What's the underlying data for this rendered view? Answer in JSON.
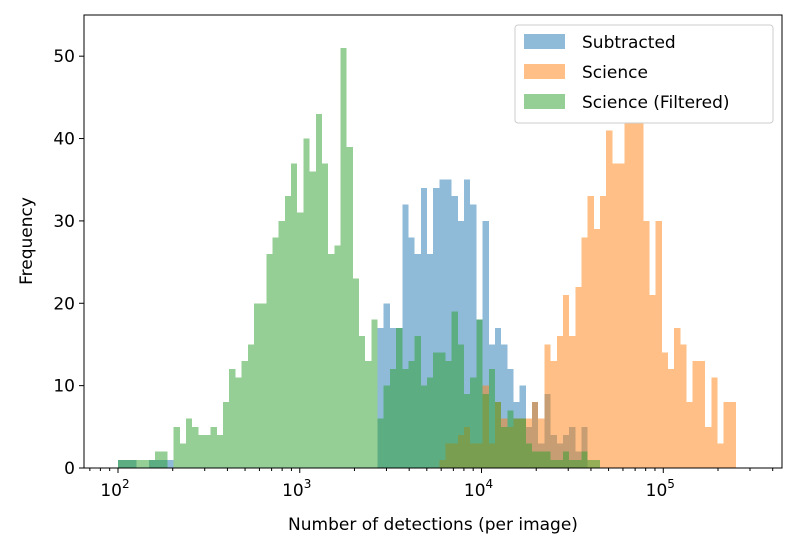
{
  "chart_data": {
    "type": "histogram",
    "xlabel": "Number of detections (per image)",
    "ylabel": "Frequency",
    "x_scale": "log",
    "xlim": [
      65,
      450000
    ],
    "ylim": [
      0,
      55
    ],
    "yticks": [
      0,
      10,
      20,
      30,
      40,
      50
    ],
    "xticks": [
      {
        "value": 100,
        "base": "10",
        "exp": "2"
      },
      {
        "value": 1000,
        "base": "10",
        "exp": "3"
      },
      {
        "value": 10000,
        "base": "10",
        "exp": "4"
      },
      {
        "value": 100000,
        "base": "10",
        "exp": "5"
      }
    ],
    "bin_edges": {
      "start": 100,
      "end": 251189,
      "count": 100
    },
    "legend_position": "upper right",
    "alpha": 0.5,
    "series": [
      {
        "name": "Subtracted",
        "color": "#1f77b4",
        "counts": [
          1,
          1,
          1,
          0,
          0,
          1,
          1,
          1,
          1,
          0,
          0,
          0,
          0,
          0,
          0,
          0,
          0,
          0,
          0,
          0,
          0,
          0,
          0,
          0,
          0,
          0,
          0,
          0,
          0,
          0,
          0,
          0,
          0,
          0,
          0,
          0,
          0,
          0,
          0,
          0,
          0,
          0,
          17,
          20,
          17,
          17,
          32,
          28,
          26,
          34,
          26,
          34,
          35,
          35,
          33,
          30,
          35,
          32,
          18,
          30,
          15,
          17,
          15,
          12,
          8,
          10,
          5,
          8,
          3,
          9,
          4,
          3,
          4,
          5,
          2,
          5,
          0,
          0,
          0,
          0,
          0,
          0,
          0,
          0,
          0,
          0,
          0,
          0,
          0,
          0,
          0,
          0,
          0,
          0,
          0,
          0,
          0,
          0,
          0,
          0
        ]
      },
      {
        "name": "Science",
        "color": "#ff7f0e",
        "counts": [
          0,
          0,
          0,
          0,
          0,
          0,
          0,
          0,
          0,
          0,
          0,
          0,
          0,
          0,
          0,
          0,
          0,
          0,
          0,
          0,
          0,
          0,
          0,
          0,
          0,
          0,
          0,
          0,
          0,
          0,
          0,
          0,
          0,
          0,
          0,
          0,
          0,
          0,
          0,
          0,
          0,
          0,
          0,
          0,
          0,
          0,
          0,
          0,
          0,
          0,
          0,
          0,
          1,
          3,
          3,
          4,
          5,
          3,
          3,
          10,
          3,
          8,
          6,
          5,
          6,
          6,
          6,
          8,
          6,
          15,
          13,
          16,
          21,
          16,
          22,
          28,
          33,
          29,
          33,
          41,
          37,
          37,
          45,
          42,
          44,
          30,
          21,
          30,
          14,
          12,
          17,
          15,
          8,
          13,
          13,
          5,
          11,
          3,
          8,
          8
        ]
      },
      {
        "name": "Science (Filtered)",
        "color": "#2ca02c",
        "counts": [
          1,
          1,
          1,
          1,
          1,
          1,
          2,
          2,
          0,
          5,
          3,
          6,
          5,
          4,
          4,
          5,
          4,
          8,
          12,
          11,
          13,
          15,
          20,
          20,
          26,
          28,
          30,
          33,
          37,
          31,
          40,
          36,
          43,
          37,
          26,
          27,
          51,
          39,
          23,
          16,
          13,
          18,
          6,
          10,
          12,
          17,
          12,
          13,
          16,
          10,
          11,
          14,
          14,
          13,
          19,
          15,
          9,
          11,
          18,
          9,
          12,
          8,
          5,
          7,
          6,
          6,
          3,
          2,
          2,
          2,
          1,
          1,
          2,
          1,
          1,
          2,
          1,
          1,
          0,
          0,
          0,
          0,
          0,
          0,
          0,
          0,
          0,
          0,
          0,
          0,
          0,
          0,
          0,
          0,
          0,
          0,
          0,
          0,
          0,
          0
        ]
      }
    ]
  }
}
